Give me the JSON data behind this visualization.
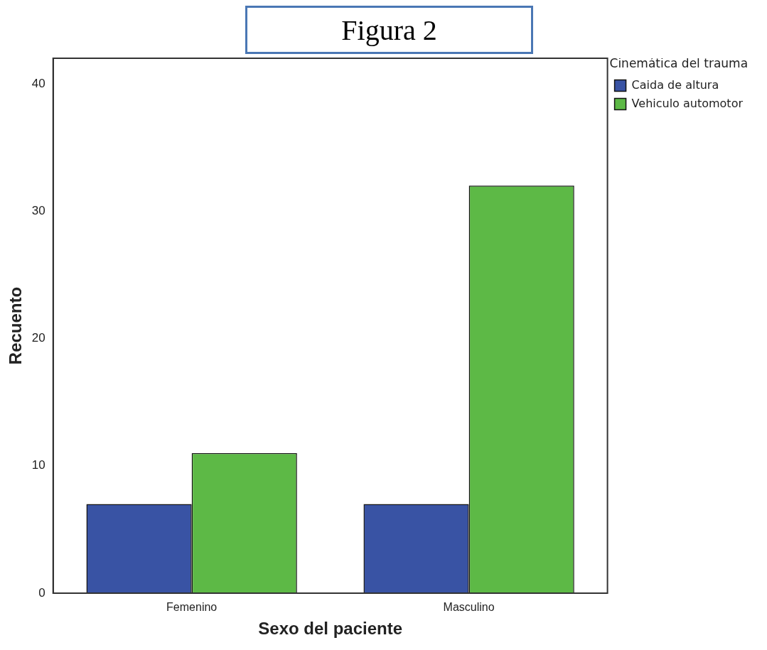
{
  "chart_data": {
    "type": "bar",
    "title": "Figura 2",
    "xlabel": "Sexo del paciente",
    "ylabel": "Recuento",
    "legend_title": "Cinemática del trauma",
    "categories": [
      "Femenino",
      "Masculino"
    ],
    "series": [
      {
        "name": "Caida de altura",
        "color": "#3953a4",
        "values": [
          7,
          7
        ]
      },
      {
        "name": "Vehiculo automotor",
        "color": "#5db946",
        "values": [
          11,
          32
        ]
      }
    ],
    "ylim": [
      0,
      42
    ],
    "yticks": [
      0,
      10,
      20,
      30,
      40
    ],
    "grid": false,
    "legend": "right"
  }
}
